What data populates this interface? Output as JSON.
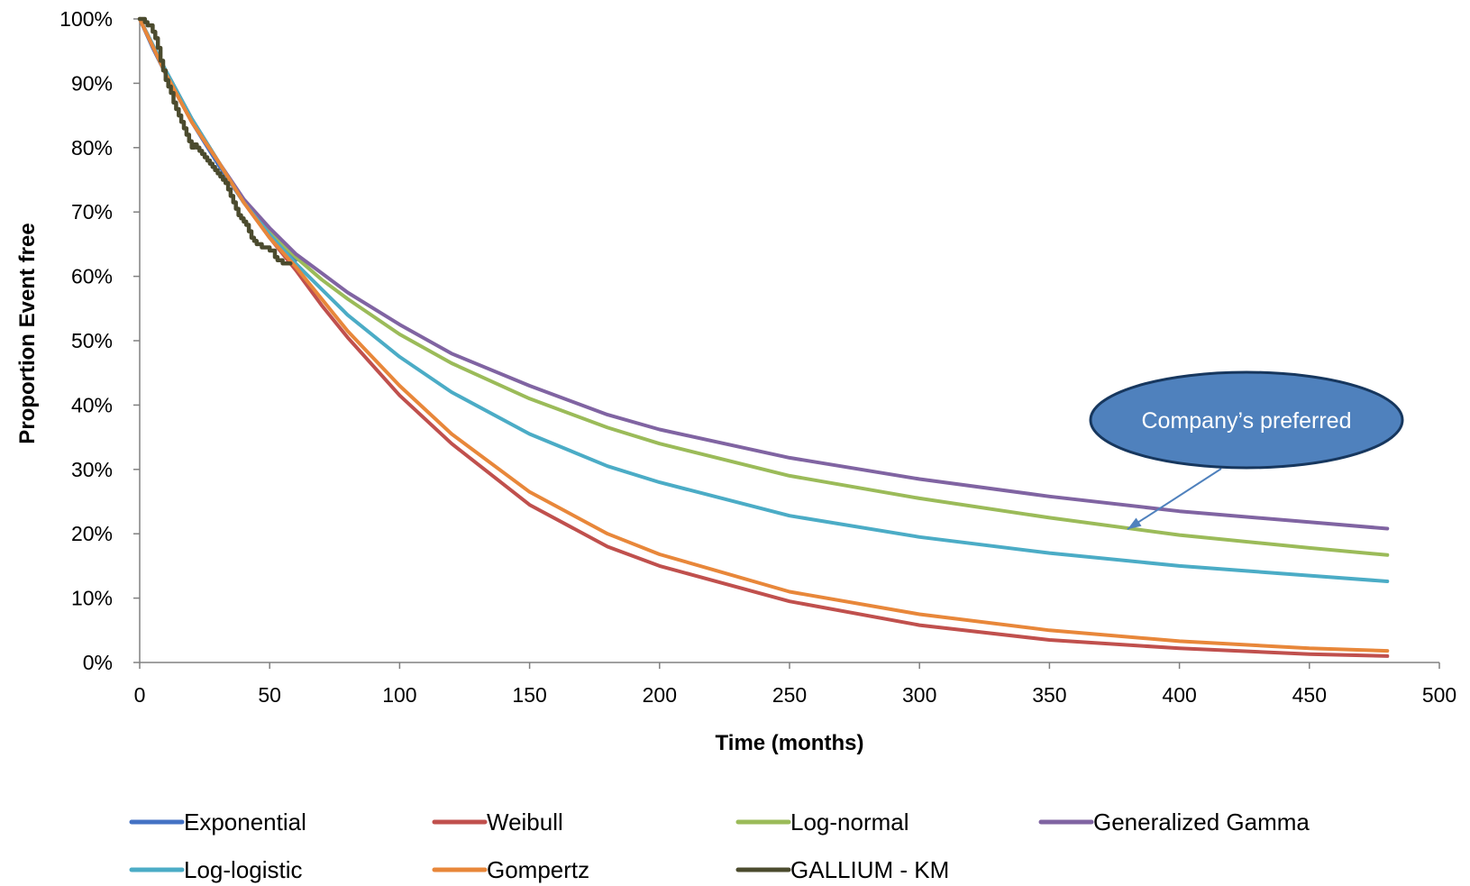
{
  "chart_data": {
    "type": "line",
    "title": "",
    "xlabel": "Time (months)",
    "ylabel": "Proportion Event free",
    "xlim": [
      0,
      500
    ],
    "ylim": [
      0,
      1
    ],
    "x_ticks": [
      0,
      50,
      100,
      150,
      200,
      250,
      300,
      350,
      400,
      450,
      500
    ],
    "y_ticks": [
      0,
      0.1,
      0.2,
      0.3,
      0.4,
      0.5,
      0.6,
      0.7,
      0.8,
      0.9,
      1.0
    ],
    "y_tick_labels": [
      "0%",
      "10%",
      "20%",
      "30%",
      "40%",
      "50%",
      "60%",
      "70%",
      "80%",
      "90%",
      "100%"
    ],
    "x_tick_labels": [
      "0",
      "50",
      "100",
      "150",
      "200",
      "250",
      "300",
      "350",
      "400",
      "450",
      "500"
    ],
    "grid": false,
    "legend_position": "bottom",
    "series": [
      {
        "name": "Exponential",
        "color": "#4472C4",
        "x": [
          0,
          5,
          10,
          20,
          30,
          40,
          50,
          60
        ],
        "y": [
          1.0,
          0.955,
          0.915,
          0.84,
          0.775,
          0.715,
          0.665,
          0.625
        ]
      },
      {
        "name": "Weibull",
        "color": "#C0504D",
        "x": [
          0,
          10,
          20,
          30,
          40,
          50,
          60,
          70,
          80,
          100,
          120,
          150,
          180,
          200,
          250,
          300,
          350,
          400,
          450,
          480
        ],
        "y": [
          1.0,
          0.915,
          0.84,
          0.78,
          0.715,
          0.66,
          0.61,
          0.555,
          0.505,
          0.415,
          0.34,
          0.245,
          0.18,
          0.15,
          0.095,
          0.058,
          0.035,
          0.022,
          0.013,
          0.01
        ]
      },
      {
        "name": "Log-normal",
        "color": "#9BBB59",
        "x": [
          0,
          10,
          20,
          30,
          40,
          50,
          60,
          70,
          80,
          100,
          120,
          150,
          180,
          200,
          250,
          300,
          350,
          400,
          450,
          480
        ],
        "y": [
          1.0,
          0.92,
          0.845,
          0.78,
          0.715,
          0.67,
          0.63,
          0.595,
          0.565,
          0.51,
          0.465,
          0.41,
          0.365,
          0.34,
          0.29,
          0.255,
          0.225,
          0.198,
          0.178,
          0.167
        ]
      },
      {
        "name": "Generalized Gamma",
        "color": "#8064A2",
        "x": [
          0,
          10,
          20,
          30,
          40,
          50,
          60,
          70,
          80,
          100,
          120,
          150,
          180,
          200,
          250,
          300,
          350,
          400,
          450,
          480
        ],
        "y": [
          1.0,
          0.92,
          0.845,
          0.78,
          0.72,
          0.675,
          0.635,
          0.605,
          0.575,
          0.525,
          0.48,
          0.43,
          0.385,
          0.362,
          0.318,
          0.285,
          0.258,
          0.235,
          0.218,
          0.208
        ]
      },
      {
        "name": "Log-logistic",
        "color": "#4BACC6",
        "x": [
          0,
          10,
          20,
          30,
          40,
          50,
          60,
          70,
          80,
          100,
          120,
          150,
          180,
          200,
          250,
          300,
          350,
          400,
          450,
          480
        ],
        "y": [
          1.0,
          0.92,
          0.845,
          0.78,
          0.715,
          0.665,
          0.62,
          0.58,
          0.54,
          0.475,
          0.42,
          0.355,
          0.305,
          0.28,
          0.228,
          0.195,
          0.17,
          0.15,
          0.135,
          0.126
        ]
      },
      {
        "name": "Gompertz",
        "color": "#E8873A",
        "x": [
          0,
          10,
          20,
          30,
          40,
          50,
          60,
          70,
          80,
          100,
          120,
          150,
          180,
          200,
          250,
          300,
          350,
          400,
          450,
          480
        ],
        "y": [
          1.0,
          0.915,
          0.84,
          0.78,
          0.715,
          0.66,
          0.615,
          0.565,
          0.515,
          0.43,
          0.355,
          0.265,
          0.2,
          0.168,
          0.11,
          0.075,
          0.05,
          0.033,
          0.022,
          0.018
        ]
      },
      {
        "name": "GALLIUM - KM",
        "color": "#4B4B2E",
        "step": true,
        "x": [
          0,
          2,
          3,
          5,
          6,
          7,
          8,
          9,
          10,
          11,
          12,
          13,
          14,
          15,
          16,
          17,
          18,
          19,
          20,
          21,
          22,
          23,
          24,
          25,
          26,
          27,
          28,
          29,
          30,
          31,
          32,
          33,
          34,
          35,
          36,
          37,
          38,
          39,
          40,
          41,
          42,
          43,
          44,
          45,
          47,
          50,
          52,
          53,
          55,
          58
        ],
        "y": [
          1.0,
          0.995,
          0.99,
          0.98,
          0.97,
          0.955,
          0.935,
          0.92,
          0.905,
          0.895,
          0.885,
          0.87,
          0.86,
          0.85,
          0.84,
          0.83,
          0.82,
          0.81,
          0.8,
          0.805,
          0.8,
          0.795,
          0.79,
          0.785,
          0.78,
          0.775,
          0.77,
          0.765,
          0.76,
          0.755,
          0.75,
          0.745,
          0.735,
          0.725,
          0.715,
          0.705,
          0.695,
          0.69,
          0.685,
          0.68,
          0.67,
          0.66,
          0.655,
          0.65,
          0.645,
          0.64,
          0.63,
          0.625,
          0.62,
          0.62
        ]
      }
    ],
    "legend": {
      "rows": [
        [
          "Exponential",
          "Weibull",
          "Log-normal",
          "Generalized Gamma"
        ],
        [
          "Log-logistic",
          "Gompertz",
          "GALLIUM - KM"
        ]
      ]
    },
    "annotation": {
      "text": "Company’s preferred",
      "fill": "#4F81BD",
      "stroke": "#17375E",
      "arrow_target": [
        380,
        0.2
      ]
    }
  }
}
